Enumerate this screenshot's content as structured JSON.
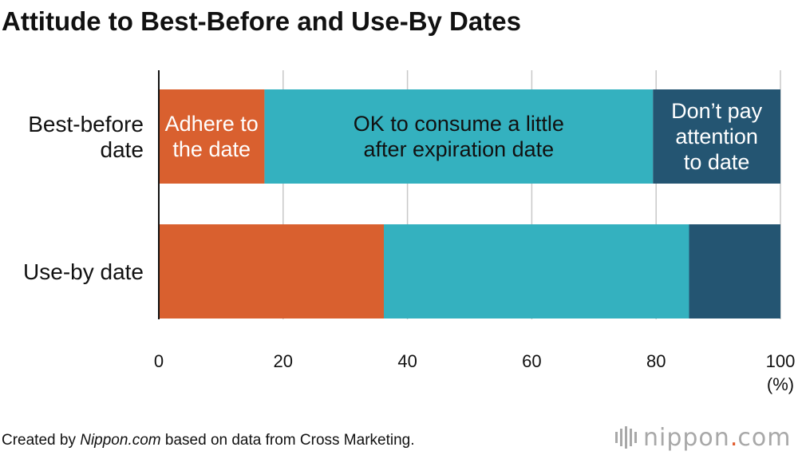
{
  "chart_data": {
    "type": "bar",
    "orientation": "horizontal",
    "stacked": true,
    "title": "Attitude to Best-Before and Use-By Dates",
    "categories": [
      "Best-before date",
      "Use-by date"
    ],
    "category_lines": [
      [
        "Best-before",
        "date"
      ],
      [
        "Use-by date"
      ]
    ],
    "series": [
      {
        "name": "Adhere to the date",
        "label_lines": [
          "Adhere to",
          "the date"
        ],
        "color": "#d9602f",
        "values": [
          17,
          36.2
        ]
      },
      {
        "name": "OK to consume a little after expiration date",
        "label_lines": [
          "OK to consume a little",
          "after expiration date"
        ],
        "color": "#34b1bf",
        "values": [
          62.5,
          49.1
        ]
      },
      {
        "name": "Don’t pay attention to date",
        "label_lines": [
          "Don’t pay",
          "attention",
          "to date"
        ],
        "color": "#245572",
        "values": [
          20.5,
          14.7
        ]
      }
    ],
    "segment_label_color": {
      "0": "#ffffff",
      "1": "#111111",
      "2": "#ffffff"
    },
    "xlim": [
      0,
      100
    ],
    "xticks": [
      "0",
      "20",
      "40",
      "60",
      "80",
      "100"
    ],
    "xunit": "(%)",
    "grid": true
  },
  "footer": {
    "prefix": "Created by ",
    "source_italic": "Nippon.com",
    "suffix": " based on data from Cross Marketing."
  },
  "logo": {
    "name": "nippon",
    "dot": ".",
    "tld": "com"
  }
}
